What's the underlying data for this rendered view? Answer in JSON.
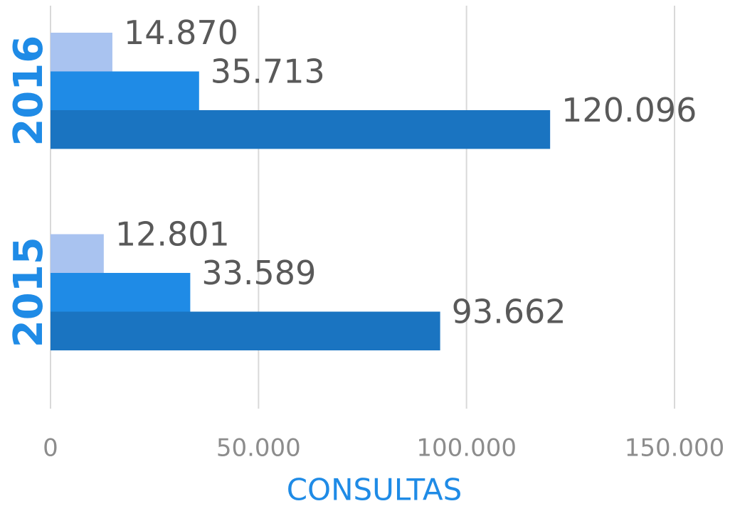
{
  "chart_data": {
    "type": "bar",
    "orientation": "horizontal",
    "x_label": "CONSULTAS",
    "categories": [
      "2016",
      "2015"
    ],
    "series": [
      {
        "color": "#a9c3f0",
        "values": [
          14870,
          12801
        ],
        "value_labels": [
          "14.870",
          "12.801"
        ]
      },
      {
        "color": "#1f8be6",
        "values": [
          35713,
          33589
        ],
        "value_labels": [
          "35.713",
          "33.589"
        ]
      },
      {
        "color": "#1a74c1",
        "values": [
          120096,
          93662
        ],
        "value_labels": [
          "120.096",
          "93.662"
        ]
      }
    ],
    "xlim": [
      0,
      150000
    ],
    "xticks": [
      0,
      {
        "value": 50000,
        "label": "50.000"
      },
      {
        "value": 100000,
        "label": "100.000"
      },
      {
        "value": 150000,
        "label": "150.000"
      }
    ],
    "grid": true
  }
}
